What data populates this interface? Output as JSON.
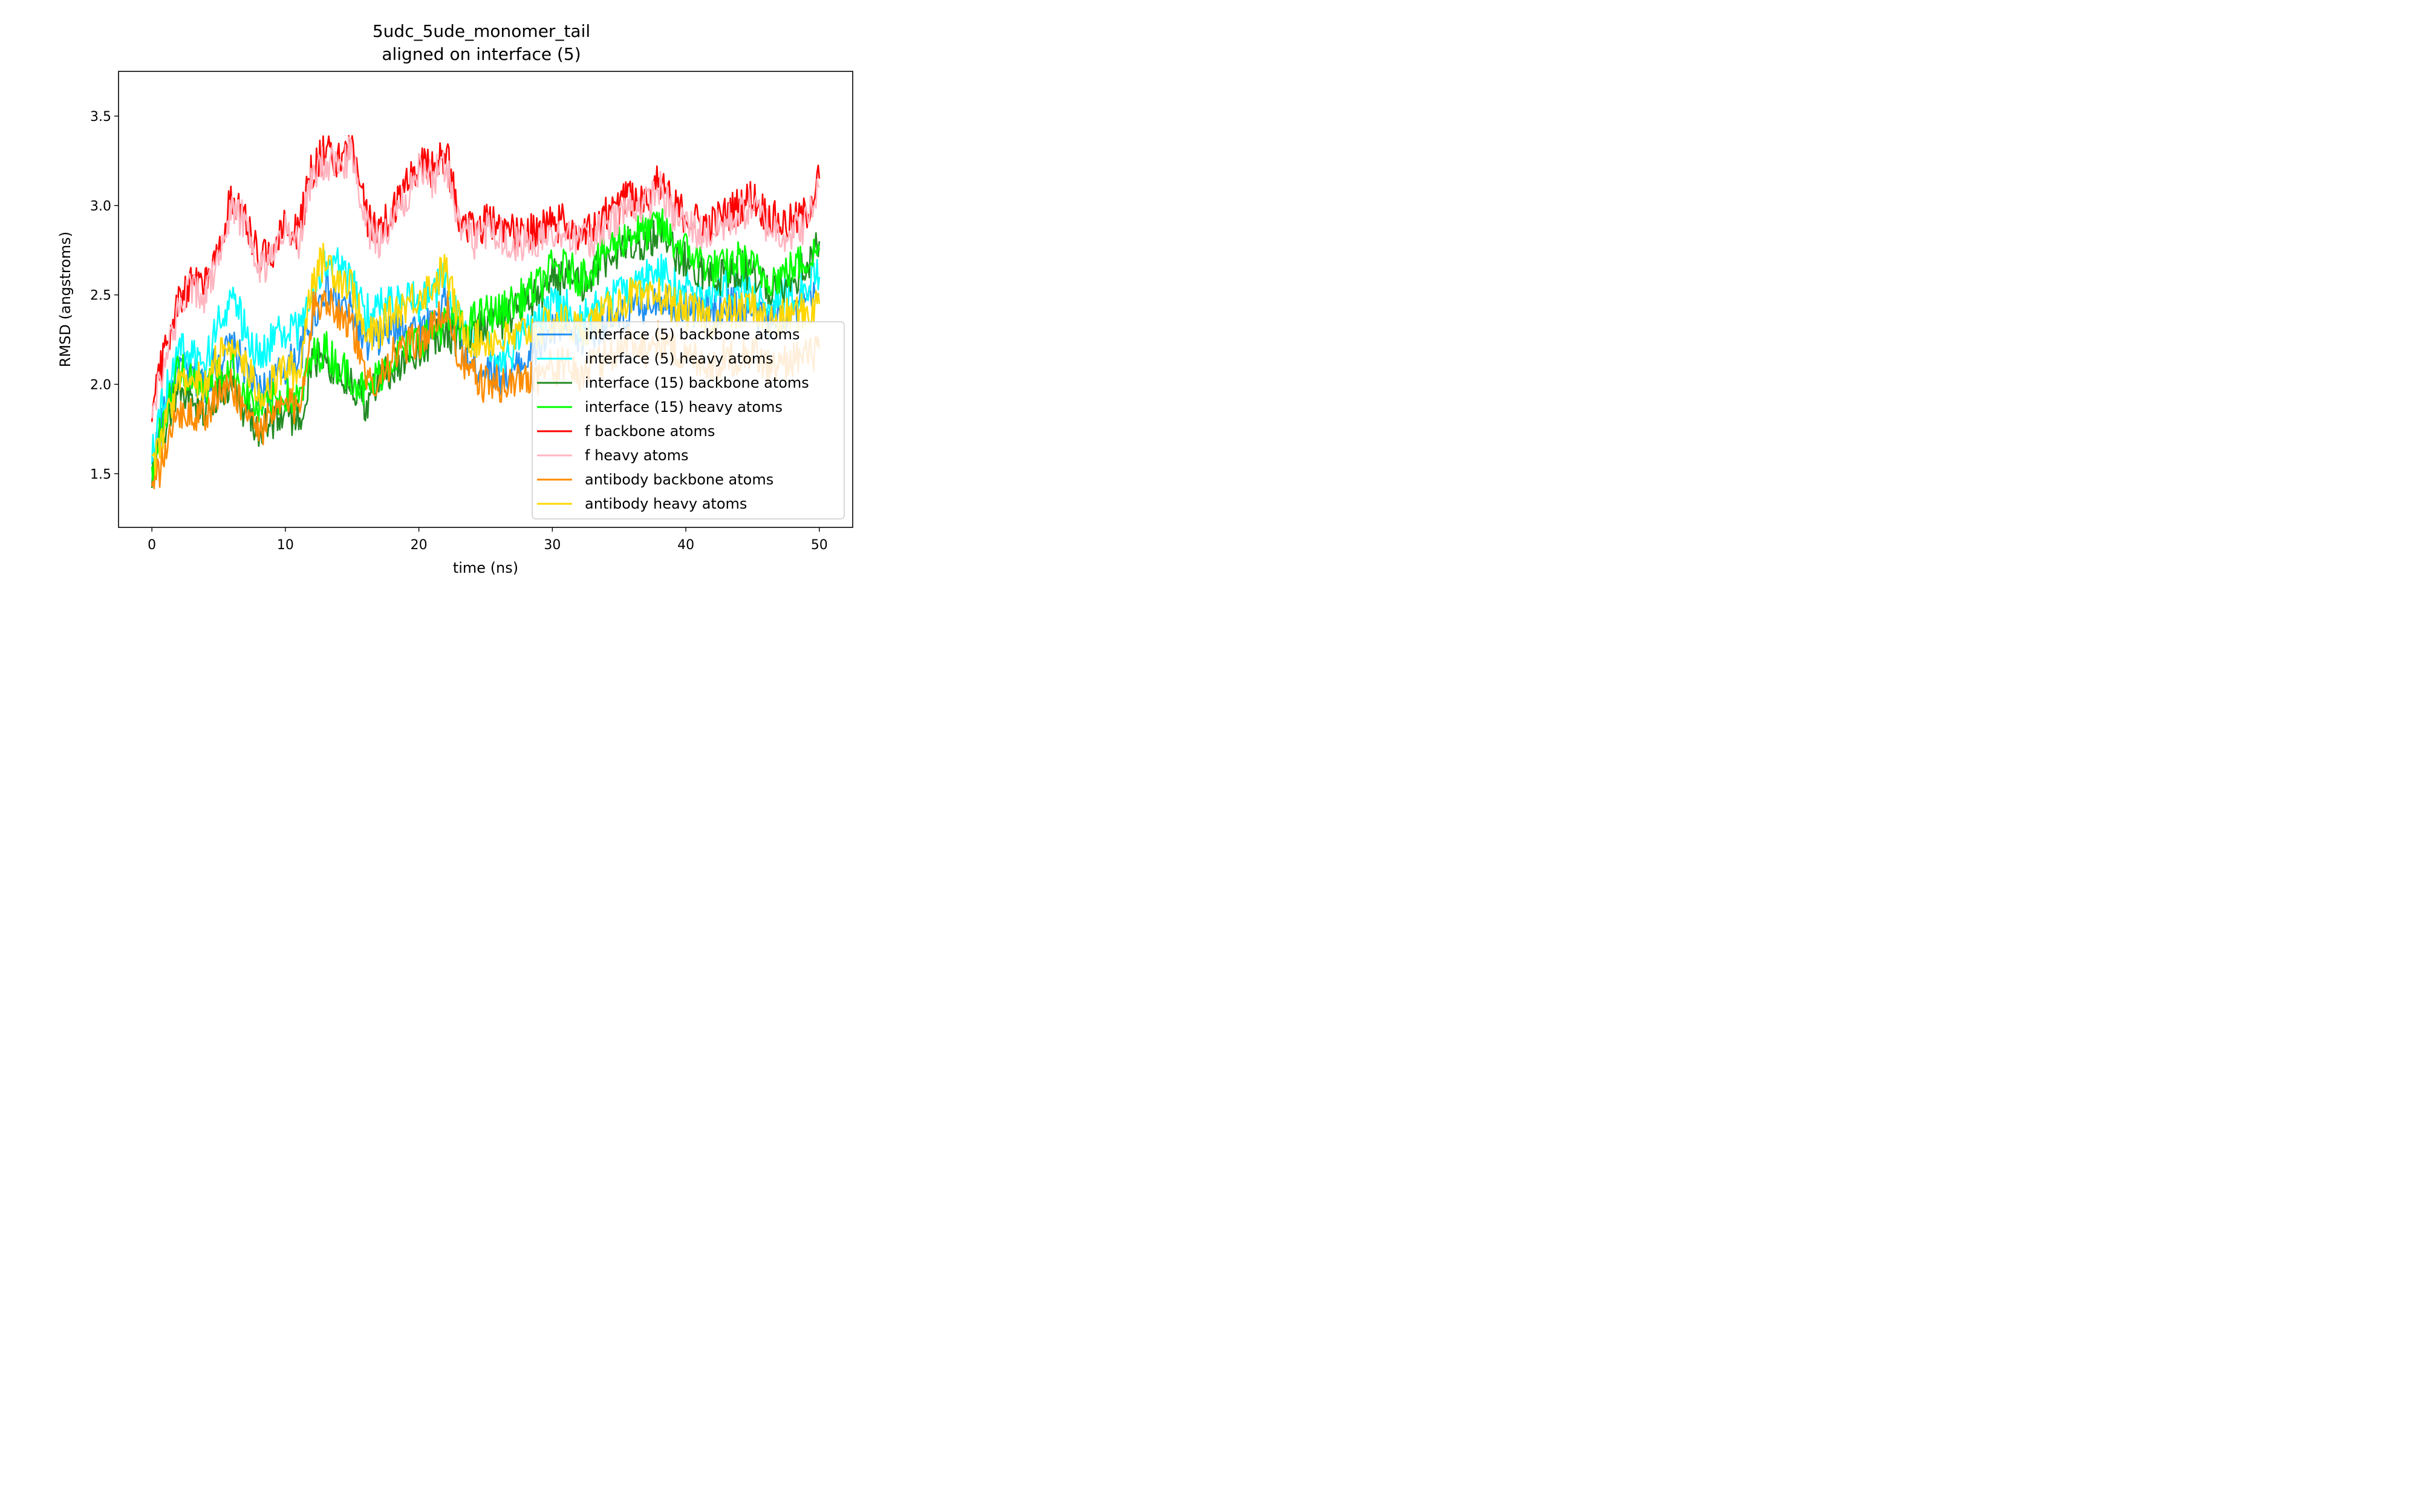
{
  "chart_data": {
    "type": "line",
    "title_lines": [
      "5udc_5ude_monomer_tail",
      "aligned on interface (5)"
    ],
    "xlabel": "time (ns)",
    "ylabel": "RMSD (angstroms)",
    "xlim": [
      -2.5,
      52.5
    ],
    "ylim": [
      1.2,
      3.75
    ],
    "xticks": [
      0,
      10,
      20,
      30,
      40,
      50
    ],
    "xtick_labels": [
      "0",
      "10",
      "20",
      "30",
      "40",
      "50"
    ],
    "yticks": [
      1.5,
      2.0,
      2.5,
      3.0,
      3.5
    ],
    "ytick_labels": [
      "1.5",
      "2.0",
      "2.5",
      "3.0",
      "3.5"
    ],
    "grid": false,
    "legend_position": "lower-right",
    "x_sample_ns": [
      0,
      1,
      2,
      3,
      4,
      5,
      6,
      7,
      8,
      9,
      10,
      11,
      12,
      13,
      14,
      15,
      16,
      17,
      18,
      19,
      20,
      21,
      22,
      23,
      24,
      25,
      26,
      27,
      28,
      29,
      30,
      31,
      32,
      33,
      34,
      35,
      36,
      37,
      38,
      39,
      40,
      41,
      42,
      43,
      44,
      45,
      46,
      47,
      48,
      49,
      50
    ],
    "series": [
      {
        "name": "interface (5) backbone atoms",
        "color": "#1f8ff0",
        "values": [
          1.55,
          1.85,
          2.1,
          2.05,
          2.0,
          2.15,
          2.2,
          2.1,
          1.95,
          2.0,
          2.1,
          2.15,
          2.35,
          2.55,
          2.45,
          2.4,
          2.2,
          2.25,
          2.3,
          2.35,
          2.3,
          2.35,
          2.5,
          2.25,
          2.1,
          2.1,
          2.05,
          2.05,
          2.15,
          2.2,
          2.3,
          2.3,
          2.25,
          2.3,
          2.35,
          2.35,
          2.4,
          2.45,
          2.5,
          2.45,
          2.45,
          2.4,
          2.4,
          2.45,
          2.45,
          2.4,
          2.35,
          2.4,
          2.4,
          2.45,
          2.5
        ]
      },
      {
        "name": "interface (5) heavy atoms",
        "color": "#00ffff",
        "values": [
          1.65,
          1.95,
          2.2,
          2.15,
          2.1,
          2.35,
          2.5,
          2.3,
          2.15,
          2.25,
          2.3,
          2.3,
          2.5,
          2.7,
          2.65,
          2.55,
          2.4,
          2.45,
          2.45,
          2.5,
          2.45,
          2.5,
          2.6,
          2.35,
          2.25,
          2.2,
          2.15,
          2.2,
          2.3,
          2.35,
          2.45,
          2.45,
          2.35,
          2.4,
          2.5,
          2.5,
          2.55,
          2.6,
          2.65,
          2.55,
          2.55,
          2.5,
          2.5,
          2.55,
          2.55,
          2.5,
          2.45,
          2.5,
          2.5,
          2.55,
          2.6
        ]
      },
      {
        "name": "interface (15) backbone atoms",
        "color": "#228b22",
        "values": [
          1.45,
          1.75,
          2.0,
          1.9,
          1.85,
          1.95,
          2.0,
          1.85,
          1.75,
          1.8,
          1.85,
          1.8,
          2.1,
          2.15,
          2.05,
          2.0,
          1.9,
          2.0,
          2.1,
          2.15,
          2.2,
          2.25,
          2.3,
          2.25,
          2.3,
          2.35,
          2.35,
          2.4,
          2.45,
          2.5,
          2.6,
          2.6,
          2.55,
          2.6,
          2.7,
          2.75,
          2.8,
          2.8,
          2.85,
          2.75,
          2.7,
          2.65,
          2.6,
          2.6,
          2.65,
          2.6,
          2.55,
          2.55,
          2.6,
          2.65,
          2.8
        ]
      },
      {
        "name": "interface (15) heavy atoms",
        "color": "#00ff00",
        "values": [
          1.5,
          1.85,
          2.1,
          2.0,
          1.95,
          2.05,
          2.1,
          1.95,
          1.85,
          1.9,
          1.95,
          1.9,
          2.15,
          2.2,
          2.1,
          2.05,
          1.95,
          2.05,
          2.15,
          2.2,
          2.25,
          2.3,
          2.35,
          2.3,
          2.35,
          2.4,
          2.4,
          2.45,
          2.5,
          2.55,
          2.65,
          2.65,
          2.6,
          2.65,
          2.75,
          2.8,
          2.85,
          2.85,
          2.9,
          2.8,
          2.75,
          2.7,
          2.65,
          2.65,
          2.7,
          2.65,
          2.6,
          2.6,
          2.65,
          2.7,
          2.75
        ]
      },
      {
        "name": "f backbone atoms",
        "color": "#ff0000",
        "values": [
          1.9,
          2.2,
          2.45,
          2.6,
          2.55,
          2.75,
          3.05,
          2.95,
          2.7,
          2.75,
          2.9,
          2.85,
          3.2,
          3.3,
          3.25,
          3.35,
          2.95,
          2.85,
          2.95,
          3.1,
          3.25,
          3.2,
          3.3,
          2.95,
          2.85,
          2.9,
          2.9,
          2.85,
          2.85,
          2.85,
          2.9,
          2.9,
          2.85,
          2.85,
          2.95,
          3.0,
          3.05,
          3.05,
          3.15,
          3.0,
          2.95,
          2.9,
          2.9,
          2.95,
          3.0,
          3.05,
          2.95,
          2.9,
          2.9,
          2.95,
          3.15
        ]
      },
      {
        "name": "f heavy atoms",
        "color": "#ffb6c1",
        "values": [
          1.85,
          2.15,
          2.4,
          2.55,
          2.5,
          2.7,
          3.0,
          2.9,
          2.65,
          2.7,
          2.85,
          2.8,
          3.15,
          3.25,
          3.2,
          3.3,
          2.9,
          2.8,
          2.9,
          3.05,
          3.2,
          3.15,
          3.25,
          2.9,
          2.8,
          2.85,
          2.85,
          2.8,
          2.8,
          2.8,
          2.85,
          2.85,
          2.8,
          2.8,
          2.9,
          2.95,
          3.0,
          3.0,
          3.1,
          2.95,
          2.9,
          2.85,
          2.85,
          2.9,
          2.95,
          3.0,
          2.9,
          2.85,
          2.85,
          2.9,
          3.1
        ]
      },
      {
        "name": "antibody backbone atoms",
        "color": "#ff8c00",
        "values": [
          1.4,
          1.6,
          1.85,
          1.85,
          1.8,
          1.95,
          2.0,
          1.85,
          1.75,
          1.8,
          1.9,
          1.85,
          2.4,
          2.5,
          2.4,
          2.35,
          2.0,
          2.05,
          2.15,
          2.2,
          2.25,
          2.3,
          2.45,
          2.15,
          2.05,
          2.0,
          2.0,
          2.0,
          2.05,
          2.05,
          2.1,
          2.1,
          2.05,
          2.1,
          2.15,
          2.2,
          2.25,
          2.2,
          2.25,
          2.2,
          2.15,
          2.15,
          2.1,
          2.15,
          2.15,
          2.2,
          2.1,
          2.1,
          2.15,
          2.15,
          2.2
        ]
      },
      {
        "name": "antibody heavy atoms",
        "color": "#ffd700",
        "values": [
          1.5,
          1.75,
          2.05,
          2.05,
          2.0,
          2.15,
          2.25,
          2.1,
          1.95,
          2.0,
          2.1,
          2.05,
          2.6,
          2.7,
          2.6,
          2.55,
          2.25,
          2.3,
          2.4,
          2.45,
          2.5,
          2.55,
          2.65,
          2.35,
          2.25,
          2.25,
          2.25,
          2.25,
          2.3,
          2.3,
          2.35,
          2.35,
          2.3,
          2.35,
          2.4,
          2.45,
          2.5,
          2.45,
          2.5,
          2.45,
          2.4,
          2.4,
          2.35,
          2.4,
          2.4,
          2.45,
          2.35,
          2.35,
          2.4,
          2.4,
          2.45
        ]
      }
    ]
  }
}
